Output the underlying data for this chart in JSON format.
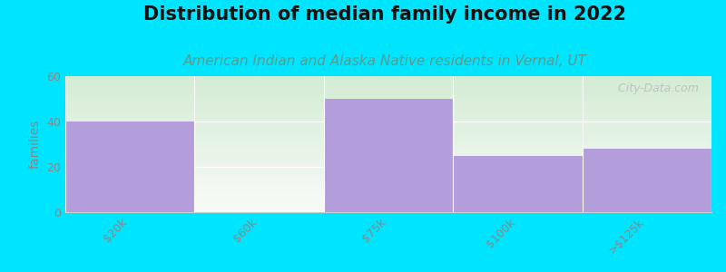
{
  "title": "Distribution of median family income in 2022",
  "subtitle": "American Indian and Alaska Native residents in Vernal, UT",
  "categories": [
    "$20k",
    "$60k",
    "$75k",
    "$100k",
    ">$125k"
  ],
  "values": [
    40,
    0,
    50,
    25,
    28
  ],
  "bar_color": "#b39ddb",
  "ylim": [
    0,
    60
  ],
  "yticks": [
    0,
    20,
    40,
    60
  ],
  "ylabel": "families",
  "background_color": "#00e5ff",
  "plot_bg_color_tl": "#d4ecd4",
  "plot_bg_color_tr": "#eaf4ea",
  "plot_bg_color_bl": "#e8f5e8",
  "plot_bg_color_br": "#f5faf5",
  "title_fontsize": 15,
  "subtitle_fontsize": 11,
  "subtitle_color": "#5b9a8a",
  "watermark": "  City-Data.com",
  "tick_color": "#888888",
  "grid_color": "#dddddd"
}
